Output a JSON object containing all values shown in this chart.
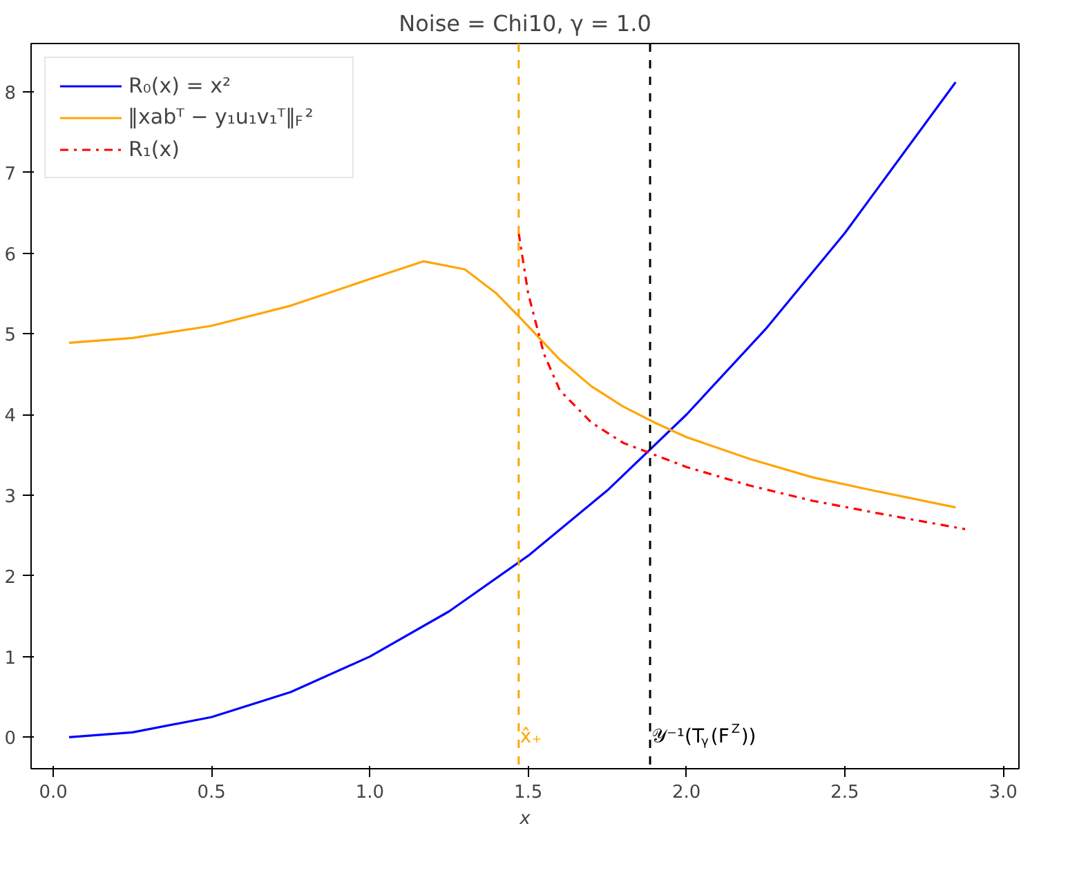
{
  "chart_data": {
    "type": "line",
    "title": "Noise = Chi10, γ = 1.0",
    "xlabel": "x",
    "xlim": [
      -0.07,
      3.05
    ],
    "ylim": [
      -0.39,
      8.6
    ],
    "xticks": [
      {
        "value": 0,
        "label": "0.0"
      },
      {
        "value": 0.5,
        "label": "0.5"
      },
      {
        "value": 1,
        "label": "1.0"
      },
      {
        "value": 1.5,
        "label": "1.5"
      },
      {
        "value": 2,
        "label": "2.0"
      },
      {
        "value": 2.5,
        "label": "2.5"
      },
      {
        "value": 3,
        "label": "3.0"
      }
    ],
    "yticks": [
      0,
      1,
      2,
      3,
      4,
      5,
      6,
      7,
      8
    ],
    "grid": false,
    "legend": "top left",
    "marker": "none",
    "series": [
      {
        "name": "R₀(x) = x²",
        "color": "#0000ff",
        "line_style": "solid",
        "x": [
          0.05,
          0.25,
          0.5,
          0.75,
          1.0,
          1.25,
          1.5,
          1.75,
          2.0,
          2.25,
          2.5,
          2.85
        ],
        "values": [
          0.0,
          0.06,
          0.25,
          0.56,
          1.0,
          1.56,
          2.25,
          3.06,
          4.0,
          5.06,
          6.25,
          8.12
        ]
      },
      {
        "name": "‖xabᵀ − y₁u₁v₁ᵀ‖$_{F}$²",
        "color": "#ffa500",
        "line_style": "solid",
        "x": [
          0.05,
          0.25,
          0.5,
          0.75,
          1.0,
          1.17,
          1.3,
          1.4,
          1.47,
          1.6,
          1.7,
          1.8,
          1.9,
          2.0,
          2.2,
          2.4,
          2.6,
          2.85
        ],
        "values": [
          4.89,
          4.95,
          5.1,
          5.35,
          5.68,
          5.9,
          5.8,
          5.5,
          5.22,
          4.68,
          4.35,
          4.1,
          3.9,
          3.72,
          3.45,
          3.22,
          3.05,
          2.85
        ]
      },
      {
        "name": "R₁(x)",
        "color": "#ff0000",
        "line_style": "dashdot",
        "x": [
          1.47,
          1.5,
          1.55,
          1.6,
          1.7,
          1.8,
          1.9,
          2.0,
          2.2,
          2.4,
          2.6,
          2.88
        ],
        "values": [
          6.25,
          5.5,
          4.75,
          4.3,
          3.9,
          3.65,
          3.5,
          3.35,
          3.12,
          2.93,
          2.78,
          2.58
        ]
      }
    ],
    "ref_lines": [
      {
        "axis": "x",
        "value": 1.47,
        "label": "x̂₊",
        "color": "#ffa500",
        "line_style": "dashed"
      },
      {
        "axis": "x",
        "value": 1.885,
        "label": "𝒴⁻¹(T$_{γ}$(F$^{Z}$))",
        "color": "#000000",
        "line_style": "dashed"
      }
    ]
  }
}
